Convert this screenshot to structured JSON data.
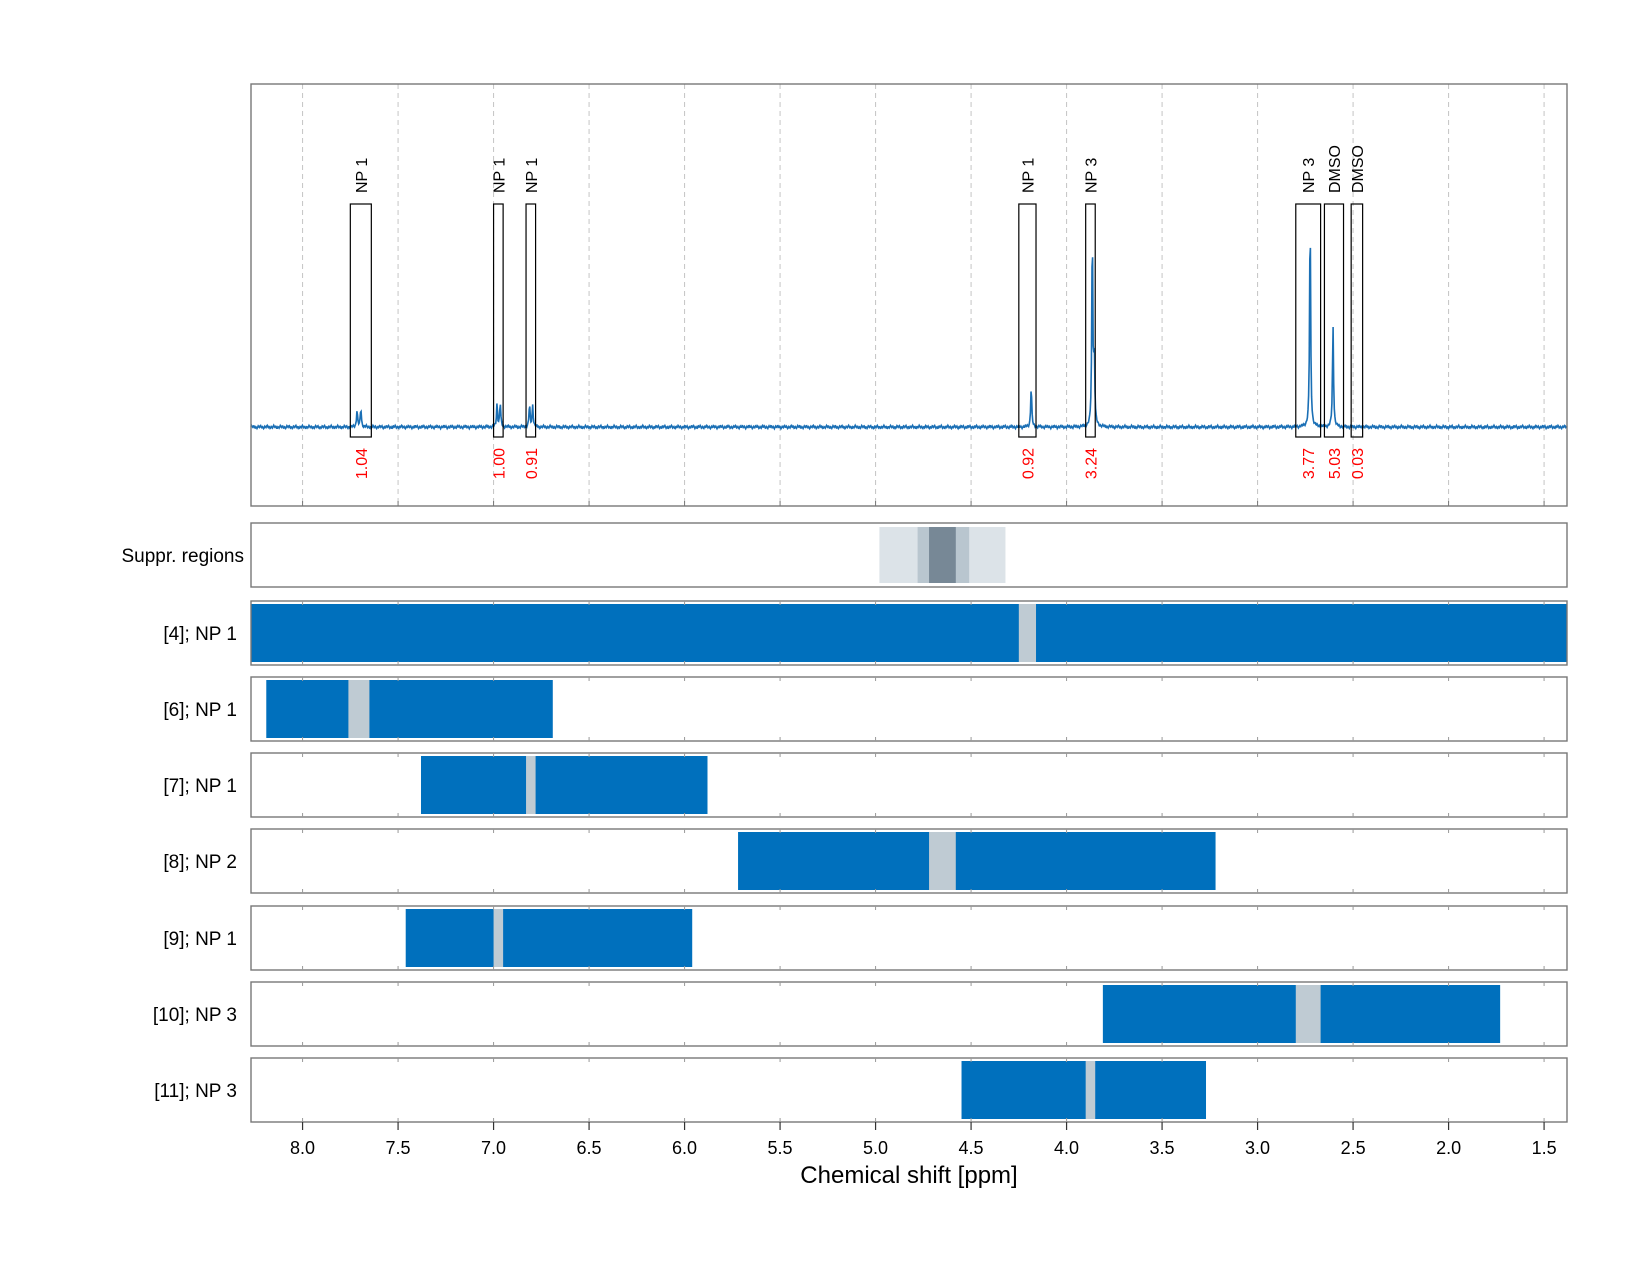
{
  "chart_data": {
    "type": "line",
    "xlabel": "Chemical shift [ppm]",
    "xlim": [
      8.27,
      1.38
    ],
    "x_ticks": [
      "8.0",
      "7.5",
      "7.0",
      "6.5",
      "6.0",
      "5.5",
      "5.0",
      "4.5",
      "4.0",
      "3.5",
      "3.0",
      "2.5",
      "2.0",
      "1.5"
    ],
    "x_tick_values": [
      8.0,
      7.5,
      7.0,
      6.5,
      6.0,
      5.5,
      5.0,
      4.5,
      4.0,
      3.5,
      3.0,
      2.5,
      2.0,
      1.5
    ],
    "grid": true,
    "colors": {
      "spectrum": "#1a6fb5",
      "bar": "#0070bd",
      "gap": "#bfcbd3",
      "integral": "#ff0000",
      "supp_light": "#dce3e8",
      "supp_mid": "#b9c6cf",
      "supp_dark": "#778896"
    },
    "peaks": [
      {
        "ppm": 7.715,
        "height": 0.05
      },
      {
        "ppm": 7.695,
        "height": 0.055
      },
      {
        "ppm": 6.982,
        "height": 0.07
      },
      {
        "ppm": 6.965,
        "height": 0.07
      },
      {
        "ppm": 6.812,
        "height": 0.065
      },
      {
        "ppm": 6.795,
        "height": 0.065
      },
      {
        "ppm": 4.185,
        "height": 0.12
      },
      {
        "ppm": 3.865,
        "height": 0.58
      },
      {
        "ppm": 3.855,
        "height": 0.2
      },
      {
        "ppm": 2.725,
        "height": 0.63
      },
      {
        "ppm": 2.605,
        "height": 0.3
      }
    ],
    "annotations": [
      {
        "label": "NP 1",
        "from": 7.75,
        "to": 7.64,
        "integral": "1.04"
      },
      {
        "label": "NP 1",
        "from": 7.0,
        "to": 6.95,
        "integral": "1.00"
      },
      {
        "label": "NP 1",
        "from": 6.83,
        "to": 6.78,
        "integral": "0.91"
      },
      {
        "label": "NP 1",
        "from": 4.25,
        "to": 4.16,
        "integral": "0.92"
      },
      {
        "label": "NP 3",
        "from": 3.9,
        "to": 3.85,
        "integral": "3.24"
      },
      {
        "label": "NP 3",
        "from": 2.8,
        "to": 2.67,
        "integral": "3.77"
      },
      {
        "label": "DMSO",
        "from": 2.65,
        "to": 2.55,
        "integral": "5.03"
      },
      {
        "label": "DMSO",
        "from": 2.51,
        "to": 2.45,
        "integral": "0.03"
      }
    ],
    "suppression": {
      "label": "Suppr. regions",
      "regions": [
        {
          "from": 4.98,
          "to": 4.32,
          "level": "light"
        },
        {
          "from": 4.78,
          "to": 4.51,
          "level": "mid"
        },
        {
          "from": 4.72,
          "to": 4.58,
          "level": "dark"
        }
      ]
    },
    "rows": [
      {
        "label": "[4]; NP 1",
        "from": 8.27,
        "to": 1.38,
        "gap": [
          4.25,
          4.16
        ]
      },
      {
        "label": "[6]; NP 1",
        "from": 8.19,
        "to": 6.69,
        "gap": [
          7.76,
          7.65
        ]
      },
      {
        "label": "[7]; NP 1",
        "from": 7.38,
        "to": 5.88,
        "gap": [
          6.83,
          6.78
        ]
      },
      {
        "label": "[8]; NP 2",
        "from": 5.72,
        "to": 3.22,
        "gap": [
          4.72,
          4.58
        ]
      },
      {
        "label": "[9]; NP 1",
        "from": 7.46,
        "to": 5.96,
        "gap": [
          7.0,
          6.95
        ]
      },
      {
        "label": "[10]; NP 3",
        "from": 3.81,
        "to": 1.73,
        "gap": [
          2.8,
          2.67
        ]
      },
      {
        "label": "[11]; NP 3",
        "from": 4.55,
        "to": 3.27,
        "gap": [
          3.9,
          3.85
        ]
      }
    ]
  }
}
